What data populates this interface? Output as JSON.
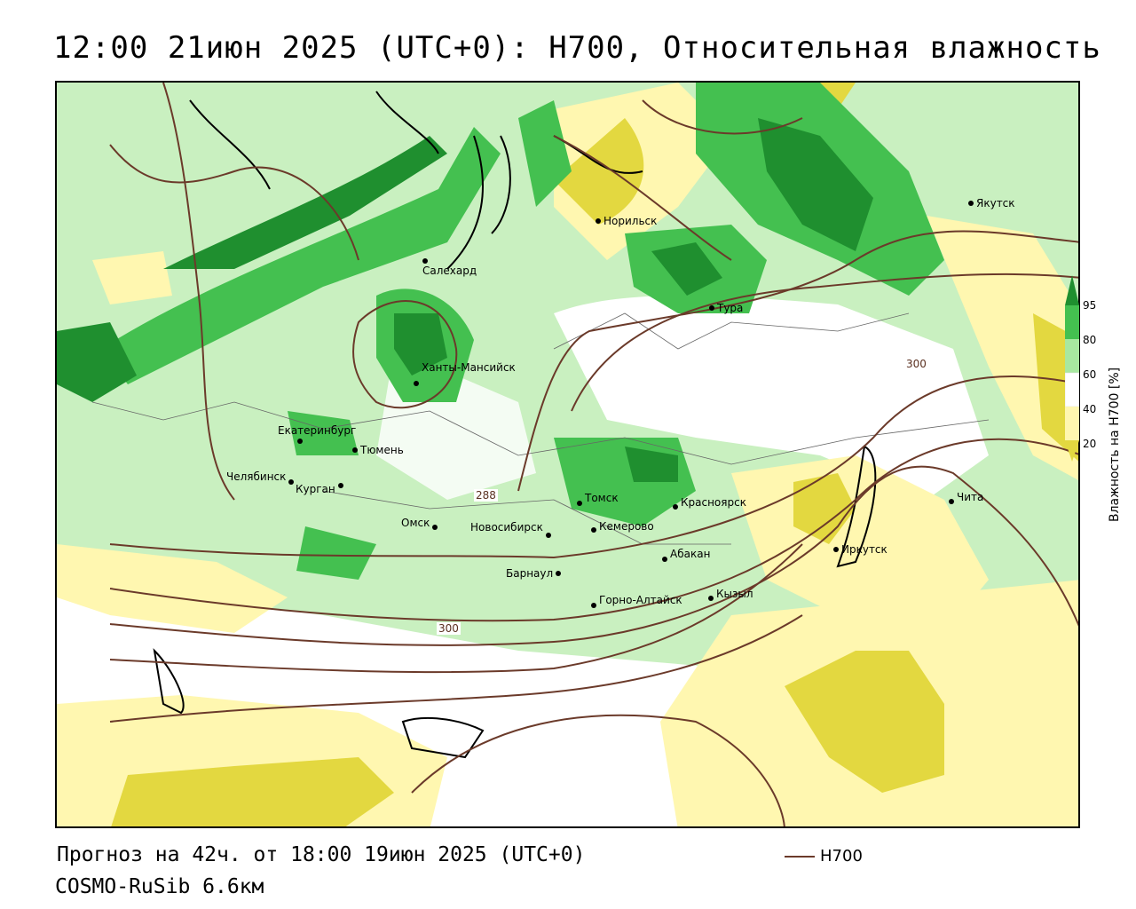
{
  "title": "12:00 21июн 2025 (UTC+0): H700, Относительная влажность",
  "footer": {
    "forecast": "Прогноз на 42ч. от 18:00 19июн 2025 (UTC+0)",
    "model": "COSMO-RuSib 6.6км"
  },
  "legend": {
    "label": "H700",
    "color": "#6b3a2a"
  },
  "colorbar": {
    "title": "Влажность на H700 [%]",
    "ticks": [
      "95",
      "80",
      "60",
      "40",
      "20"
    ],
    "colors": {
      "95": "#1f8f2f",
      "80": "#44c050",
      "60": "#a8e8a0",
      "40": "#ffffff",
      "20": "#fff7b0",
      "low": "#e3d840"
    }
  },
  "cities": [
    {
      "name": "Норильск"
    },
    {
      "name": "Якутск"
    },
    {
      "name": "Салехард"
    },
    {
      "name": "Тура"
    },
    {
      "name": "Ханты-Мансийск"
    },
    {
      "name": "Екатеринбург"
    },
    {
      "name": "Тюмень"
    },
    {
      "name": "Челябинск"
    },
    {
      "name": "Курган"
    },
    {
      "name": "Томск"
    },
    {
      "name": "Красноярск"
    },
    {
      "name": "Омск"
    },
    {
      "name": "Новосибирск"
    },
    {
      "name": "Кемерово"
    },
    {
      "name": "Барнаул"
    },
    {
      "name": "Абакан"
    },
    {
      "name": "Горно-Алтайск"
    },
    {
      "name": "Кызыл"
    },
    {
      "name": "Иркутск"
    },
    {
      "name": "Чита"
    }
  ],
  "contour_labels": [
    "288",
    "300",
    "300"
  ]
}
